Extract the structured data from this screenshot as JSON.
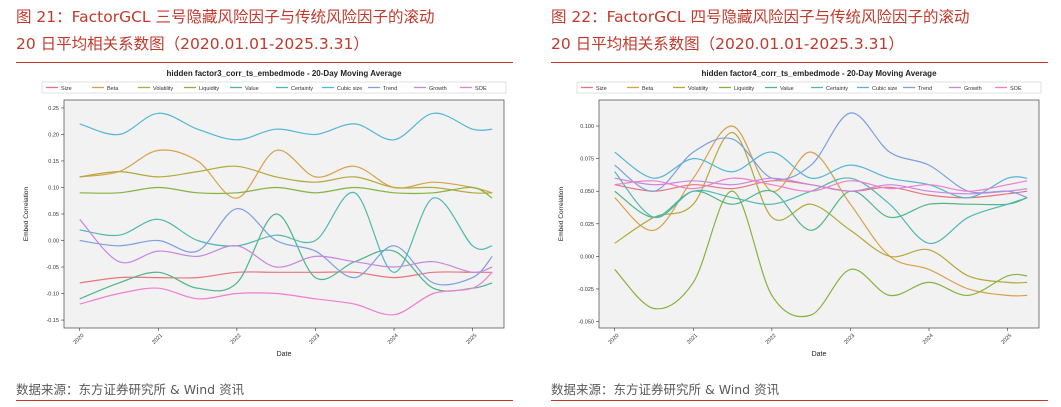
{
  "panels": [
    {
      "caption_line1": "图 21：FactorGCL 三号隐藏风险因子与传统风险因子的滚动",
      "caption_line2": "20 日平均相关系数图（2020.01.01-2025.3.31）",
      "source": "数据来源：东方证券研究所 & Wind 资讯"
    },
    {
      "caption_line1": "图 22：FactorGCL 四号隐藏风险因子与传统风险因子的滚动",
      "caption_line2": "20 日平均相关系数图（2020.01.01-2025.3.31）",
      "source": "数据来源：东方证券研究所 & Wind 资讯"
    }
  ],
  "series_colors": {
    "Size": "#e8747c",
    "Beta": "#d9a04a",
    "Volatility": "#b5a83a",
    "Liquidity": "#86b33f",
    "Value": "#4fb58a",
    "Certainty": "#4fb8b2",
    "Cubic size": "#53b6d6",
    "Trend": "#7c9fe0",
    "Growth": "#c786e0",
    "SOE": "#ee7fcc"
  },
  "chart_data": [
    {
      "type": "line",
      "title": "hidden factor3_corr_ts_embedmode - 20-Day Moving Average",
      "xlabel": "Date",
      "ylabel": "Embed Correlation",
      "xlim": [
        2019.8,
        2025.4
      ],
      "xticks": [
        2020,
        2021,
        2022,
        2023,
        2024,
        2025
      ],
      "xtick_labels": [
        "2020",
        "2021",
        "2022",
        "2023",
        "2024",
        "2025"
      ],
      "ylim": [
        -0.165,
        0.265
      ],
      "yticks": [
        -0.15,
        -0.1,
        -0.05,
        0.0,
        0.05,
        0.1,
        0.15,
        0.2,
        0.25
      ],
      "ytick_labels": [
        "-0.15",
        "-0.10",
        "-0.05",
        "0.00",
        "0.05",
        "0.10",
        "0.15",
        "0.20",
        "0.25"
      ],
      "legend": "top",
      "grid": false,
      "x": [
        2020.0,
        2020.5,
        2021.0,
        2021.5,
        2022.0,
        2022.5,
        2023.0,
        2023.5,
        2024.0,
        2024.5,
        2025.0,
        2025.25
      ],
      "series": [
        {
          "name": "Size",
          "values": [
            -0.08,
            -0.07,
            -0.07,
            -0.07,
            -0.06,
            -0.06,
            -0.06,
            -0.06,
            -0.07,
            -0.06,
            -0.06,
            -0.06
          ]
        },
        {
          "name": "Beta",
          "values": [
            0.12,
            0.13,
            0.17,
            0.15,
            0.08,
            0.17,
            0.12,
            0.14,
            0.1,
            0.11,
            0.1,
            0.09
          ]
        },
        {
          "name": "Volatility",
          "values": [
            0.12,
            0.13,
            0.12,
            0.13,
            0.14,
            0.12,
            0.11,
            0.12,
            0.1,
            0.1,
            0.09,
            0.09
          ]
        },
        {
          "name": "Liquidity",
          "values": [
            0.09,
            0.09,
            0.1,
            0.09,
            0.09,
            0.1,
            0.09,
            0.1,
            0.09,
            0.09,
            0.1,
            0.08
          ]
        },
        {
          "name": "Value",
          "values": [
            -0.11,
            -0.08,
            -0.06,
            -0.09,
            -0.08,
            0.05,
            -0.07,
            -0.04,
            -0.02,
            -0.09,
            -0.09,
            -0.08
          ]
        },
        {
          "name": "Certainty",
          "values": [
            0.02,
            0.01,
            0.04,
            0.0,
            -0.01,
            0.01,
            0.0,
            0.09,
            -0.06,
            0.08,
            -0.01,
            -0.01
          ]
        },
        {
          "name": "Cubic size",
          "values": [
            0.22,
            0.2,
            0.24,
            0.21,
            0.19,
            0.21,
            0.2,
            0.22,
            0.19,
            0.24,
            0.21,
            0.21
          ]
        },
        {
          "name": "Trend",
          "values": [
            0.0,
            -0.01,
            0.0,
            -0.02,
            0.06,
            0.0,
            -0.02,
            -0.07,
            -0.01,
            -0.08,
            -0.07,
            -0.03
          ]
        },
        {
          "name": "Growth",
          "values": [
            0.04,
            -0.04,
            -0.02,
            -0.03,
            -0.01,
            -0.05,
            -0.03,
            -0.04,
            -0.05,
            -0.04,
            -0.06,
            -0.05
          ]
        },
        {
          "name": "SOE",
          "values": [
            -0.12,
            -0.1,
            -0.09,
            -0.11,
            -0.1,
            -0.1,
            -0.11,
            -0.12,
            -0.14,
            -0.1,
            -0.09,
            -0.06
          ]
        }
      ]
    },
    {
      "type": "line",
      "title": "hidden factor4_corr_ts_embedmode - 20-Day Moving Average",
      "xlabel": "Date",
      "ylabel": "Embed Correlation",
      "xlim": [
        2019.8,
        2025.4
      ],
      "xticks": [
        2020,
        2021,
        2022,
        2023,
        2024,
        2025
      ],
      "xtick_labels": [
        "2020",
        "2021",
        "2022",
        "2023",
        "2024",
        "2025"
      ],
      "ylim": [
        -0.055,
        0.12
      ],
      "yticks": [
        -0.05,
        -0.025,
        0.0,
        0.025,
        0.05,
        0.075,
        0.1
      ],
      "ytick_labels": [
        "-0.050",
        "-0.025",
        "0.000",
        "0.025",
        "0.050",
        "0.075",
        "0.100"
      ],
      "legend": "top",
      "grid": false,
      "x": [
        2020.0,
        2020.5,
        2021.0,
        2021.5,
        2022.0,
        2022.5,
        2023.0,
        2023.5,
        2024.0,
        2024.5,
        2025.0,
        2025.25
      ],
      "series": [
        {
          "name": "Size",
          "values": [
            0.055,
            0.05,
            0.055,
            0.052,
            0.058,
            0.055,
            0.05,
            0.053,
            0.047,
            0.045,
            0.048,
            0.05
          ]
        },
        {
          "name": "Beta",
          "values": [
            0.045,
            0.02,
            0.06,
            0.1,
            0.05,
            0.08,
            0.04,
            0.0,
            -0.01,
            -0.025,
            -0.03,
            -0.03
          ]
        },
        {
          "name": "Volatility",
          "values": [
            0.01,
            0.03,
            0.04,
            0.095,
            0.03,
            0.04,
            0.02,
            0.0,
            0.005,
            -0.015,
            -0.02,
            -0.02
          ]
        },
        {
          "name": "Liquidity",
          "values": [
            -0.01,
            -0.04,
            -0.02,
            0.05,
            -0.03,
            -0.045,
            -0.01,
            -0.03,
            -0.02,
            -0.03,
            -0.015,
            -0.015
          ]
        },
        {
          "name": "Value",
          "values": [
            0.05,
            0.03,
            0.05,
            0.04,
            0.05,
            0.02,
            0.05,
            0.03,
            0.04,
            0.04,
            0.04,
            0.045
          ]
        },
        {
          "name": "Certainty",
          "values": [
            0.065,
            0.03,
            0.05,
            0.045,
            0.04,
            0.05,
            0.06,
            0.04,
            0.01,
            0.03,
            0.04,
            0.045
          ]
        },
        {
          "name": "Cubic size",
          "values": [
            0.08,
            0.06,
            0.075,
            0.065,
            0.08,
            0.06,
            0.07,
            0.06,
            0.055,
            0.045,
            0.06,
            0.06
          ]
        },
        {
          "name": "Trend",
          "values": [
            0.07,
            0.05,
            0.08,
            0.09,
            0.06,
            0.07,
            0.11,
            0.08,
            0.07,
            0.05,
            0.05,
            0.045
          ]
        },
        {
          "name": "Growth",
          "values": [
            0.06,
            0.055,
            0.058,
            0.055,
            0.06,
            0.055,
            0.05,
            0.055,
            0.05,
            0.048,
            0.05,
            0.052
          ]
        },
        {
          "name": "SOE",
          "values": [
            0.055,
            0.058,
            0.052,
            0.06,
            0.055,
            0.05,
            0.058,
            0.052,
            0.055,
            0.05,
            0.055,
            0.058
          ]
        }
      ]
    }
  ]
}
